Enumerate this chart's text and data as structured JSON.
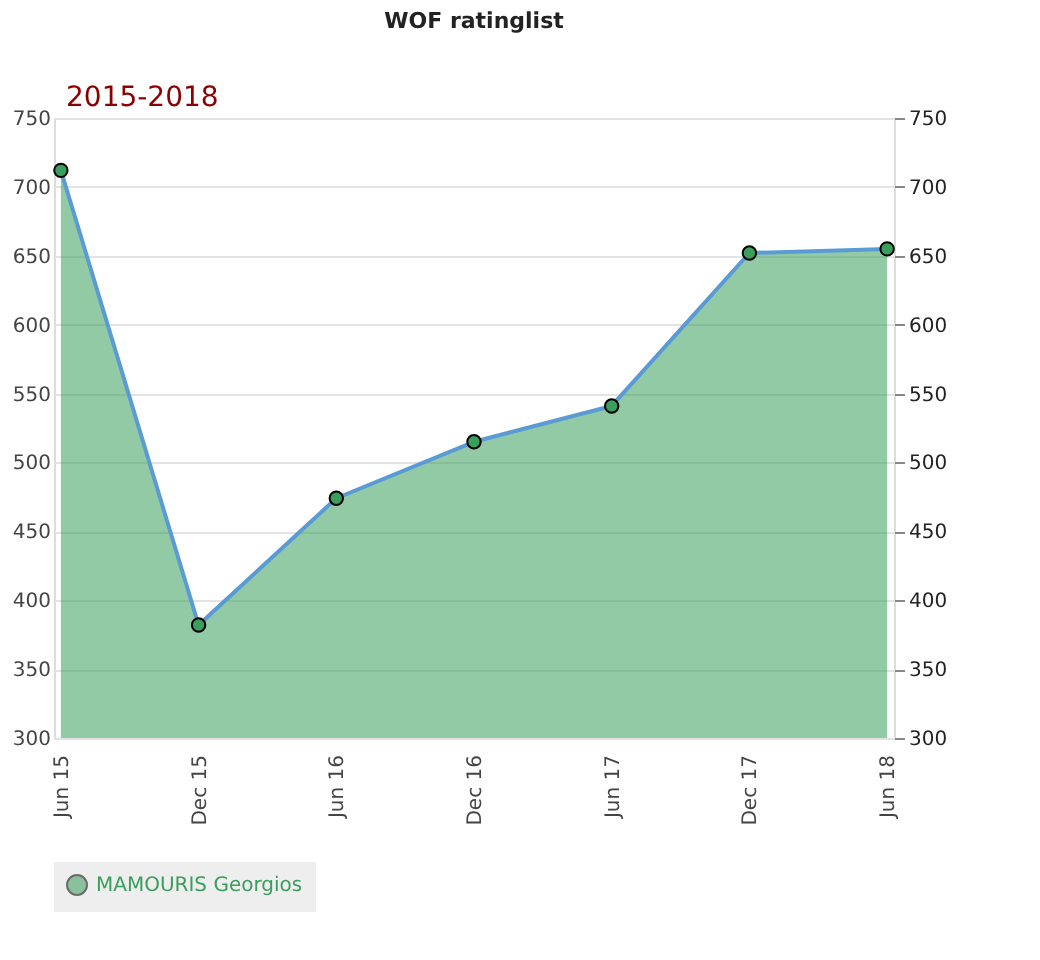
{
  "chart_data": {
    "type": "area",
    "title": "WOF ratinglist",
    "annotations": [
      "2015-2018"
    ],
    "categories": [
      "Jun 15",
      "Dec 15",
      "Jun 16",
      "Dec 16",
      "Jun 17",
      "Dec 17",
      "Jun 18"
    ],
    "series": [
      {
        "name": "MAMOURIS Georgios",
        "color": "#3a9e5c",
        "values": [
          712,
          382,
          474,
          515,
          541,
          652,
          655
        ]
      }
    ],
    "ylim": [
      300,
      750
    ],
    "yticks": [
      300,
      350,
      400,
      450,
      500,
      550,
      600,
      650,
      700,
      750
    ],
    "y2lim": [
      300,
      750
    ],
    "y2ticks": [
      300,
      350,
      400,
      450,
      500,
      550,
      600,
      650,
      700,
      750
    ],
    "grid": "y",
    "legend": "bottom",
    "marker": "circle",
    "line_style": "solid"
  }
}
